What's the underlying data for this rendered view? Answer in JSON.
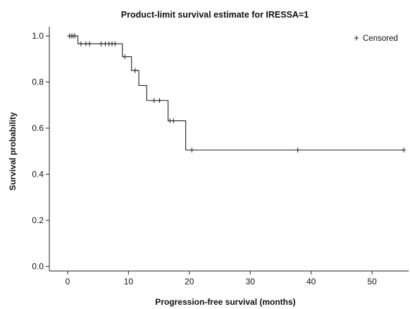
{
  "chart_data": {
    "type": "line",
    "title": "Product-limit survival estimate for IRESSA=1",
    "xlabel": "Progression-free survival (months)",
    "ylabel": "Survival probability",
    "xlim": [
      -3,
      56
    ],
    "ylim": [
      -0.02,
      1.04
    ],
    "x_ticks": [
      0,
      10,
      20,
      30,
      40,
      50
    ],
    "y_ticks": [
      0.0,
      0.2,
      0.4,
      0.6,
      0.8,
      1.0
    ],
    "x_tick_labels": [
      "0",
      "10",
      "20",
      "30",
      "40",
      "50"
    ],
    "y_tick_labels": [
      "0.0",
      "0.2",
      "0.4",
      "0.6",
      "0.8",
      "1.0"
    ],
    "grid": false,
    "legend": {
      "position": "top-right",
      "symbol": "+",
      "label": "Censored"
    },
    "series": [
      {
        "style": "step",
        "color": "#222222",
        "steps": [
          {
            "x": 0,
            "y": 1.0
          },
          {
            "x": 1.7,
            "y": 0.966
          },
          {
            "x": 9.0,
            "y": 0.91
          },
          {
            "x": 10.5,
            "y": 0.85
          },
          {
            "x": 11.7,
            "y": 0.785
          },
          {
            "x": 13.0,
            "y": 0.72
          },
          {
            "x": 16.5,
            "y": 0.632
          },
          {
            "x": 19.4,
            "y": 0.505
          }
        ],
        "end_x": 55.5,
        "censored": [
          {
            "x": 0.3,
            "y": 1.0
          },
          {
            "x": 0.6,
            "y": 1.0
          },
          {
            "x": 0.9,
            "y": 1.0
          },
          {
            "x": 1.2,
            "y": 1.0
          },
          {
            "x": 2.2,
            "y": 0.966
          },
          {
            "x": 3.0,
            "y": 0.966
          },
          {
            "x": 3.6,
            "y": 0.966
          },
          {
            "x": 5.5,
            "y": 0.966
          },
          {
            "x": 6.2,
            "y": 0.966
          },
          {
            "x": 6.8,
            "y": 0.966
          },
          {
            "x": 7.3,
            "y": 0.966
          },
          {
            "x": 7.8,
            "y": 0.966
          },
          {
            "x": 9.4,
            "y": 0.91
          },
          {
            "x": 11.1,
            "y": 0.85
          },
          {
            "x": 14.2,
            "y": 0.72
          },
          {
            "x": 15.1,
            "y": 0.72
          },
          {
            "x": 16.8,
            "y": 0.632
          },
          {
            "x": 17.4,
            "y": 0.632
          },
          {
            "x": 20.4,
            "y": 0.505
          },
          {
            "x": 37.8,
            "y": 0.505
          },
          {
            "x": 55.2,
            "y": 0.505
          }
        ]
      }
    ]
  }
}
